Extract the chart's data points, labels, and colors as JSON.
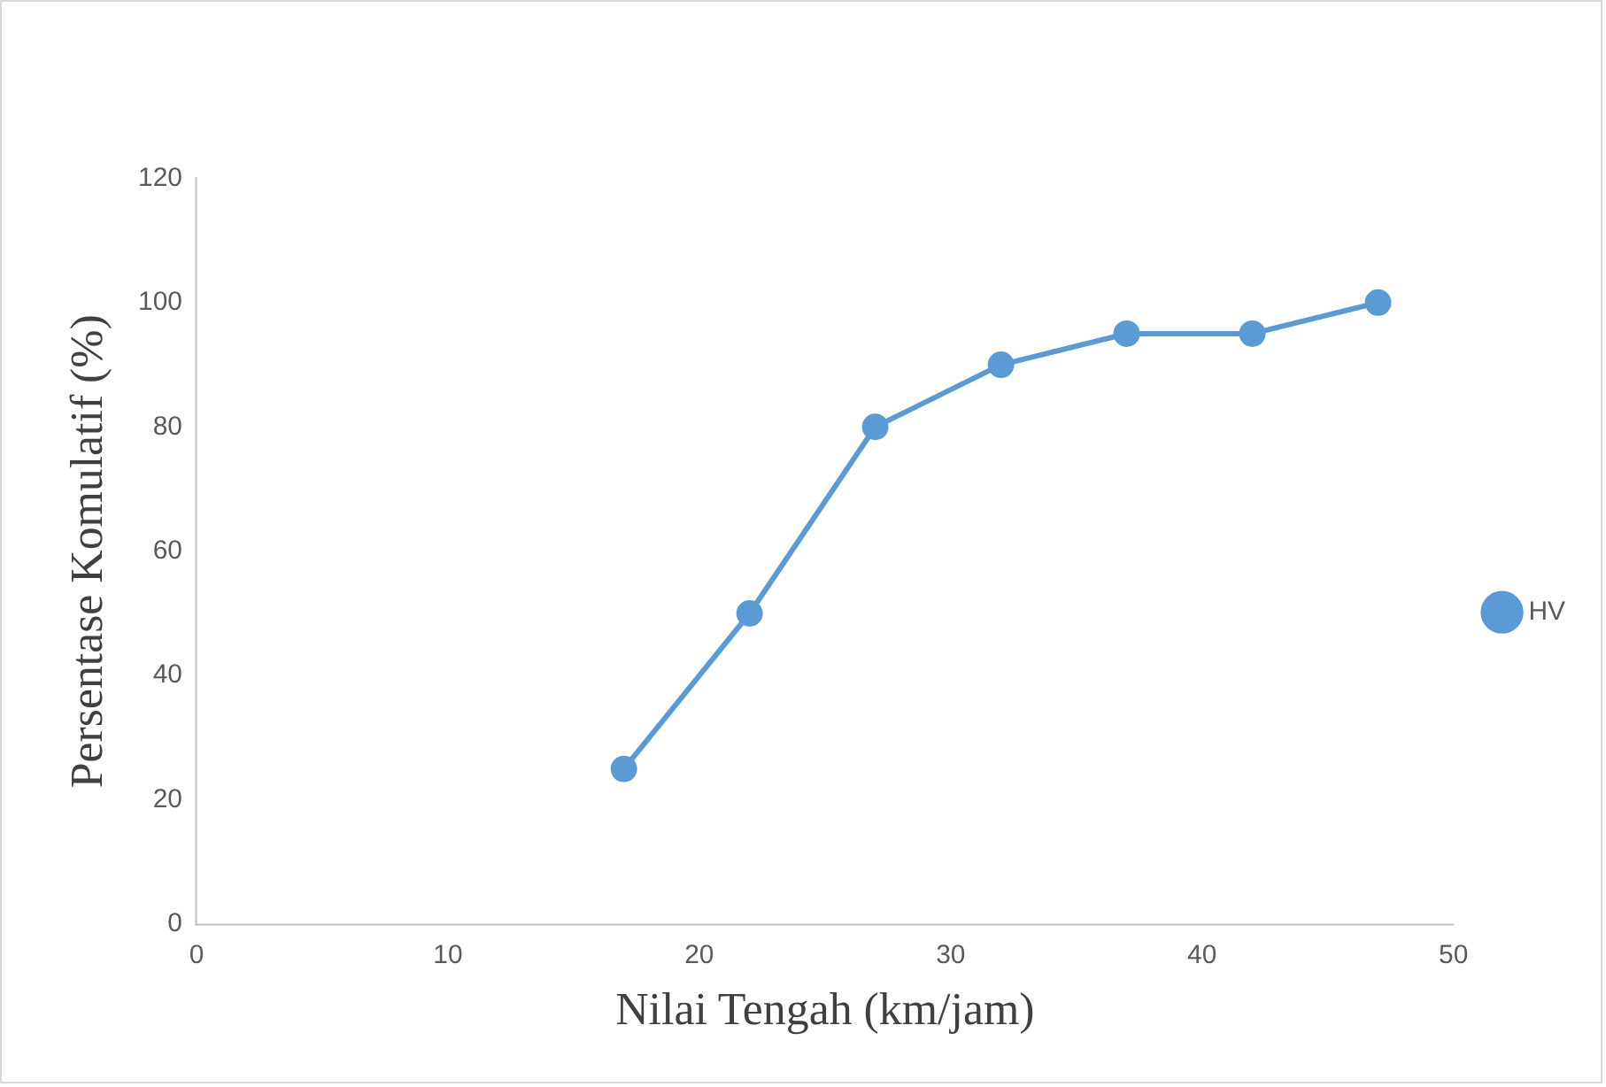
{
  "chart_data": {
    "type": "line",
    "xlabel": "Nilai Tengah (km/jam)",
    "ylabel": "Persentase Komulatif (%)",
    "x": [
      17,
      22,
      27,
      32,
      37,
      42,
      47
    ],
    "series": [
      {
        "name": "HV",
        "color": "#5b9bd5",
        "values": [
          25,
          50,
          80,
          90,
          95,
          95,
          100
        ]
      }
    ],
    "xlim": [
      0,
      50
    ],
    "xticks": [
      0,
      10,
      20,
      30,
      40,
      50
    ],
    "ylim": [
      0,
      120
    ],
    "yticks": [
      0,
      20,
      40,
      60,
      80,
      100,
      120
    ],
    "grid": false,
    "legend": "right",
    "marker": "circle",
    "line_style": "solid"
  }
}
